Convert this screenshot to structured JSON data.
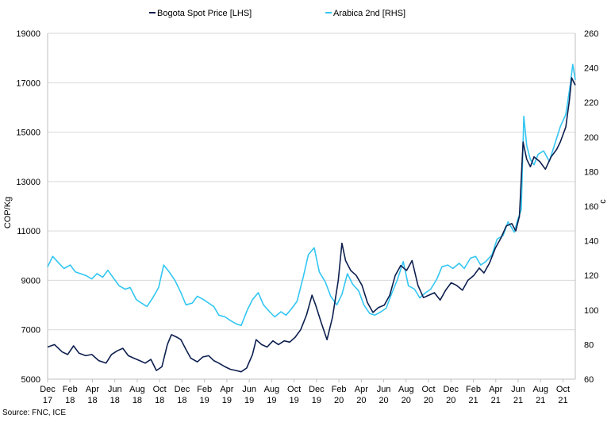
{
  "chart_data": {
    "type": "line",
    "x_labels": [
      [
        "Dec",
        "17"
      ],
      [
        "Feb",
        "18"
      ],
      [
        "Apr",
        "18"
      ],
      [
        "Jun",
        "18"
      ],
      [
        "Aug",
        "18"
      ],
      [
        "Oct",
        "18"
      ],
      [
        "Dec",
        "18"
      ],
      [
        "Feb",
        "19"
      ],
      [
        "Apr",
        "19"
      ],
      [
        "Jun",
        "19"
      ],
      [
        "Aug",
        "19"
      ],
      [
        "Oct",
        "19"
      ],
      [
        "Dec",
        "19"
      ],
      [
        "Feb",
        "20"
      ],
      [
        "Apr",
        "20"
      ],
      [
        "Jun",
        "20"
      ],
      [
        "Aug",
        "20"
      ],
      [
        "Oct",
        "20"
      ],
      [
        "Dec",
        "20"
      ],
      [
        "Feb",
        "21"
      ],
      [
        "Apr",
        "21"
      ],
      [
        "Jun",
        "21"
      ],
      [
        "Aug",
        "21"
      ],
      [
        "Oct",
        "21"
      ]
    ],
    "x_range": [
      "2017-12-01",
      "2021-11-15"
    ],
    "left_axis": {
      "label": "COP/Kg",
      "min": 5000,
      "max": 19000,
      "ticks": [
        5000,
        7000,
        9000,
        11000,
        13000,
        15000,
        17000,
        19000
      ]
    },
    "right_axis": {
      "label": "c",
      "min": 60,
      "max": 260,
      "ticks": [
        60,
        80,
        100,
        120,
        140,
        160,
        180,
        200,
        220,
        240,
        260
      ]
    },
    "grid": "horizontal",
    "legend_position": "top",
    "series": [
      {
        "name": "Bogota Spot Price [LHS]",
        "axis": "left",
        "color": "#0d1f4f",
        "points": [
          [
            "2017-12-01",
            6300
          ],
          [
            "2017-12-20",
            6400
          ],
          [
            "2018-01-10",
            6100
          ],
          [
            "2018-01-25",
            6000
          ],
          [
            "2018-02-10",
            6350
          ],
          [
            "2018-02-25",
            6050
          ],
          [
            "2018-03-15",
            5950
          ],
          [
            "2018-04-01",
            6000
          ],
          [
            "2018-04-20",
            5750
          ],
          [
            "2018-05-10",
            5650
          ],
          [
            "2018-05-25",
            6000
          ],
          [
            "2018-06-10",
            6150
          ],
          [
            "2018-06-25",
            6250
          ],
          [
            "2018-07-10",
            5950
          ],
          [
            "2018-07-25",
            5850
          ],
          [
            "2018-08-10",
            5750
          ],
          [
            "2018-08-25",
            5650
          ],
          [
            "2018-09-10",
            5800
          ],
          [
            "2018-09-25",
            5350
          ],
          [
            "2018-10-10",
            5500
          ],
          [
            "2018-10-25",
            6400
          ],
          [
            "2018-11-05",
            6800
          ],
          [
            "2018-11-20",
            6700
          ],
          [
            "2018-12-01",
            6600
          ],
          [
            "2018-12-15",
            6200
          ],
          [
            "2018-12-28",
            5850
          ],
          [
            "2019-01-15",
            5700
          ],
          [
            "2019-01-30",
            5900
          ],
          [
            "2019-02-15",
            5950
          ],
          [
            "2019-03-01",
            5750
          ],
          [
            "2019-03-15",
            5650
          ],
          [
            "2019-04-01",
            5500
          ],
          [
            "2019-04-15",
            5400
          ],
          [
            "2019-05-01",
            5350
          ],
          [
            "2019-05-15",
            5300
          ],
          [
            "2019-05-30",
            5450
          ],
          [
            "2019-06-15",
            6000
          ],
          [
            "2019-06-25",
            6600
          ],
          [
            "2019-07-10",
            6400
          ],
          [
            "2019-07-25",
            6300
          ],
          [
            "2019-08-10",
            6550
          ],
          [
            "2019-08-25",
            6400
          ],
          [
            "2019-09-10",
            6550
          ],
          [
            "2019-09-25",
            6500
          ],
          [
            "2019-10-10",
            6700
          ],
          [
            "2019-10-25",
            7000
          ],
          [
            "2019-11-10",
            7600
          ],
          [
            "2019-11-25",
            8400
          ],
          [
            "2019-12-05",
            8000
          ],
          [
            "2019-12-20",
            7300
          ],
          [
            "2020-01-05",
            6600
          ],
          [
            "2020-01-20",
            7500
          ],
          [
            "2020-02-05",
            9000
          ],
          [
            "2020-02-15",
            10500
          ],
          [
            "2020-02-25",
            9800
          ],
          [
            "2020-03-10",
            9400
          ],
          [
            "2020-03-25",
            9200
          ],
          [
            "2020-04-10",
            8800
          ],
          [
            "2020-04-25",
            8100
          ],
          [
            "2020-05-10",
            7700
          ],
          [
            "2020-05-25",
            7900
          ],
          [
            "2020-06-10",
            8000
          ],
          [
            "2020-06-25",
            8400
          ],
          [
            "2020-07-10",
            9200
          ],
          [
            "2020-07-25",
            9600
          ],
          [
            "2020-08-10",
            9400
          ],
          [
            "2020-08-25",
            9800
          ],
          [
            "2020-09-10",
            8800
          ],
          [
            "2020-09-25",
            8300
          ],
          [
            "2020-10-10",
            8400
          ],
          [
            "2020-10-25",
            8500
          ],
          [
            "2020-11-10",
            8200
          ],
          [
            "2020-11-25",
            8600
          ],
          [
            "2020-12-10",
            8900
          ],
          [
            "2020-12-25",
            8800
          ],
          [
            "2021-01-10",
            8600
          ],
          [
            "2021-01-25",
            9000
          ],
          [
            "2021-02-10",
            9200
          ],
          [
            "2021-02-25",
            9500
          ],
          [
            "2021-03-10",
            9300
          ],
          [
            "2021-03-25",
            9700
          ],
          [
            "2021-04-10",
            10300
          ],
          [
            "2021-04-25",
            10700
          ],
          [
            "2021-05-10",
            11200
          ],
          [
            "2021-05-25",
            11300
          ],
          [
            "2021-06-05",
            11000
          ],
          [
            "2021-06-15",
            11600
          ],
          [
            "2021-06-25",
            14600
          ],
          [
            "2021-07-05",
            13900
          ],
          [
            "2021-07-15",
            13600
          ],
          [
            "2021-07-25",
            14000
          ],
          [
            "2021-08-10",
            13800
          ],
          [
            "2021-08-25",
            13500
          ],
          [
            "2021-09-10",
            14000
          ],
          [
            "2021-09-25",
            14300
          ],
          [
            "2021-10-05",
            14600
          ],
          [
            "2021-10-20",
            15200
          ],
          [
            "2021-10-30",
            16300
          ],
          [
            "2021-11-05",
            17200
          ],
          [
            "2021-11-15",
            16900
          ]
        ]
      },
      {
        "name": "Arabica 2nd [RHS]",
        "axis": "right",
        "color": "#33c6f2",
        "points": [
          [
            "2017-12-01",
            125
          ],
          [
            "2017-12-15",
            131
          ],
          [
            "2018-01-01",
            127
          ],
          [
            "2018-01-15",
            124
          ],
          [
            "2018-02-01",
            126
          ],
          [
            "2018-02-15",
            122
          ],
          [
            "2018-03-01",
            121
          ],
          [
            "2018-03-15",
            120
          ],
          [
            "2018-04-01",
            118
          ],
          [
            "2018-04-15",
            121
          ],
          [
            "2018-05-01",
            119
          ],
          [
            "2018-05-15",
            123
          ],
          [
            "2018-06-01",
            118
          ],
          [
            "2018-06-15",
            114
          ],
          [
            "2018-07-01",
            112
          ],
          [
            "2018-07-15",
            113
          ],
          [
            "2018-08-01",
            106
          ],
          [
            "2018-08-15",
            104
          ],
          [
            "2018-08-30",
            102
          ],
          [
            "2018-09-15",
            107
          ],
          [
            "2018-10-01",
            113
          ],
          [
            "2018-10-15",
            126
          ],
          [
            "2018-10-30",
            122
          ],
          [
            "2018-11-15",
            117
          ],
          [
            "2018-12-01",
            110
          ],
          [
            "2018-12-15",
            103
          ],
          [
            "2019-01-01",
            104
          ],
          [
            "2019-01-15",
            108
          ],
          [
            "2019-02-01",
            106
          ],
          [
            "2019-02-15",
            104
          ],
          [
            "2019-03-01",
            102
          ],
          [
            "2019-03-15",
            97
          ],
          [
            "2019-04-01",
            96
          ],
          [
            "2019-04-15",
            94
          ],
          [
            "2019-05-01",
            92
          ],
          [
            "2019-05-15",
            91
          ],
          [
            "2019-06-01",
            100
          ],
          [
            "2019-06-15",
            106
          ],
          [
            "2019-07-01",
            110
          ],
          [
            "2019-07-15",
            103
          ],
          [
            "2019-08-01",
            99
          ],
          [
            "2019-08-15",
            96
          ],
          [
            "2019-09-01",
            99
          ],
          [
            "2019-09-15",
            97
          ],
          [
            "2019-10-01",
            101
          ],
          [
            "2019-10-15",
            105
          ],
          [
            "2019-11-01",
            119
          ],
          [
            "2019-11-15",
            132
          ],
          [
            "2019-12-01",
            136
          ],
          [
            "2019-12-15",
            122
          ],
          [
            "2020-01-01",
            116
          ],
          [
            "2020-01-15",
            108
          ],
          [
            "2020-02-01",
            103
          ],
          [
            "2020-02-15",
            109
          ],
          [
            "2020-03-01",
            121
          ],
          [
            "2020-03-15",
            115
          ],
          [
            "2020-04-01",
            111
          ],
          [
            "2020-04-15",
            103
          ],
          [
            "2020-05-01",
            98
          ],
          [
            "2020-05-15",
            97
          ],
          [
            "2020-06-01",
            99
          ],
          [
            "2020-06-15",
            101
          ],
          [
            "2020-07-01",
            110
          ],
          [
            "2020-07-15",
            117
          ],
          [
            "2020-08-01",
            128
          ],
          [
            "2020-08-15",
            114
          ],
          [
            "2020-09-01",
            112
          ],
          [
            "2020-09-15",
            107
          ],
          [
            "2020-10-01",
            110
          ],
          [
            "2020-10-15",
            112
          ],
          [
            "2020-11-01",
            118
          ],
          [
            "2020-11-15",
            125
          ],
          [
            "2020-12-01",
            126
          ],
          [
            "2020-12-15",
            124
          ],
          [
            "2021-01-01",
            127
          ],
          [
            "2021-01-15",
            124
          ],
          [
            "2021-02-01",
            130
          ],
          [
            "2021-02-15",
            131
          ],
          [
            "2021-03-01",
            126
          ],
          [
            "2021-03-15",
            128
          ],
          [
            "2021-04-01",
            132
          ],
          [
            "2021-04-15",
            141
          ],
          [
            "2021-05-01",
            143
          ],
          [
            "2021-05-15",
            151
          ],
          [
            "2021-06-01",
            145
          ],
          [
            "2021-06-10",
            152
          ],
          [
            "2021-06-20",
            158
          ],
          [
            "2021-06-27",
            212
          ],
          [
            "2021-07-05",
            195
          ],
          [
            "2021-07-15",
            187
          ],
          [
            "2021-07-25",
            184
          ],
          [
            "2021-08-05",
            190
          ],
          [
            "2021-08-20",
            192
          ],
          [
            "2021-09-05",
            186
          ],
          [
            "2021-09-20",
            196
          ],
          [
            "2021-10-05",
            206
          ],
          [
            "2021-10-20",
            213
          ],
          [
            "2021-11-01",
            230
          ],
          [
            "2021-11-08",
            242
          ],
          [
            "2021-11-15",
            233
          ]
        ]
      }
    ],
    "source": "Source: FNC, ICE"
  }
}
